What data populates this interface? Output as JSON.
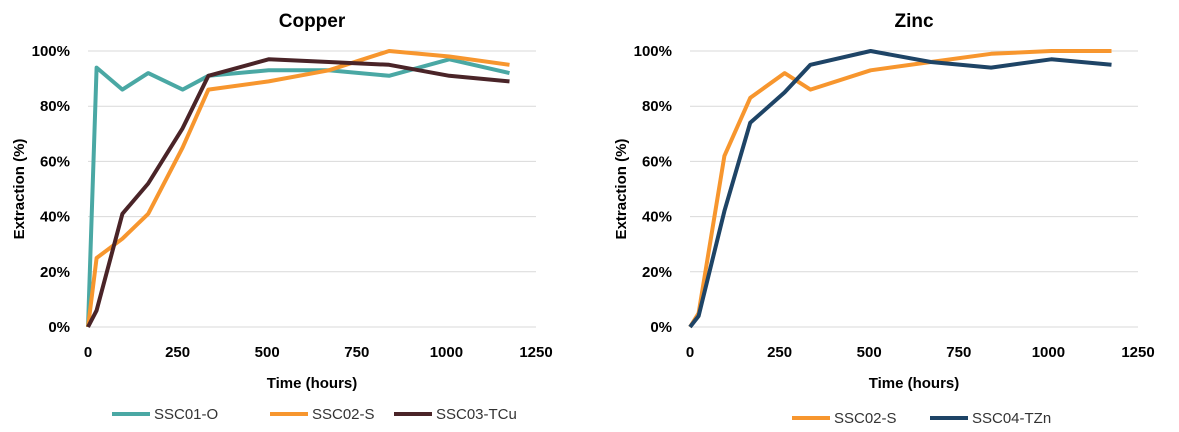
{
  "chart_data": [
    {
      "type": "line",
      "title": "Copper",
      "xlabel": "Time (hours)",
      "ylabel": "Extraction (%)",
      "xlim": [
        0,
        1250
      ],
      "ylim": [
        0,
        100
      ],
      "xticks": [
        "0",
        "250",
        "500",
        "750",
        "1000",
        "1250"
      ],
      "yticks": [
        "0%",
        "20%",
        "40%",
        "60%",
        "80%",
        "100%"
      ],
      "grid": true,
      "legend_position": "bottom",
      "series": [
        {
          "name": "SSC01-O",
          "color": "#4aa8a4",
          "x": [
            0,
            24,
            96,
            168,
            264,
            336,
            504,
            672,
            840,
            1008,
            1176
          ],
          "y": [
            0,
            94,
            86,
            92,
            86,
            91,
            93,
            93,
            91,
            97,
            92
          ]
        },
        {
          "name": "SSC02-S",
          "color": "#f7962e",
          "x": [
            0,
            24,
            96,
            168,
            264,
            336,
            504,
            672,
            840,
            1008,
            1176
          ],
          "y": [
            0,
            25,
            32,
            41,
            65,
            86,
            89,
            93,
            100,
            98,
            95
          ]
        },
        {
          "name": "SSC03-TCu",
          "color": "#4a2428",
          "x": [
            0,
            24,
            96,
            168,
            264,
            336,
            504,
            672,
            840,
            1008,
            1176
          ],
          "y": [
            0,
            6,
            41,
            52,
            72,
            91,
            97,
            96,
            95,
            91,
            89
          ]
        }
      ]
    },
    {
      "type": "line",
      "title": "Zinc",
      "xlabel": "Time (hours)",
      "ylabel": "Extraction (%)",
      "xlim": [
        0,
        1250
      ],
      "ylim": [
        0,
        100
      ],
      "xticks": [
        "0",
        "250",
        "500",
        "750",
        "1000",
        "1250"
      ],
      "yticks": [
        "0%",
        "20%",
        "40%",
        "60%",
        "80%",
        "100%"
      ],
      "grid": true,
      "legend_position": "bottom",
      "series": [
        {
          "name": "SSC02-S",
          "color": "#f7962e",
          "x": [
            0,
            24,
            96,
            168,
            264,
            336,
            504,
            672,
            840,
            1008,
            1176
          ],
          "y": [
            0,
            5,
            62,
            83,
            92,
            86,
            93,
            96,
            99,
            100,
            100
          ]
        },
        {
          "name": "SSC04-TZn",
          "color": "#1e4466",
          "x": [
            0,
            24,
            96,
            168,
            264,
            336,
            504,
            672,
            840,
            1008,
            1176
          ],
          "y": [
            0,
            4,
            42,
            74,
            85,
            95,
            100,
            96,
            94,
            97,
            95
          ]
        }
      ]
    }
  ]
}
